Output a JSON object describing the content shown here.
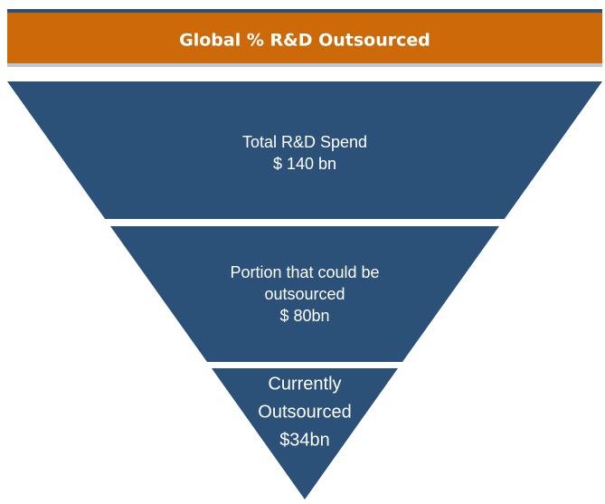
{
  "header": {
    "title": "Global % R&D Outsourced"
  },
  "levels": [
    {
      "lines": [
        "Total R&D Spend",
        "$ 140 bn"
      ]
    },
    {
      "lines": [
        "Portion that could be",
        "outsourced",
        "$ 80bn"
      ]
    },
    {
      "lines": [
        "Currently",
        "Outsourced",
        "$34bn"
      ]
    }
  ]
}
